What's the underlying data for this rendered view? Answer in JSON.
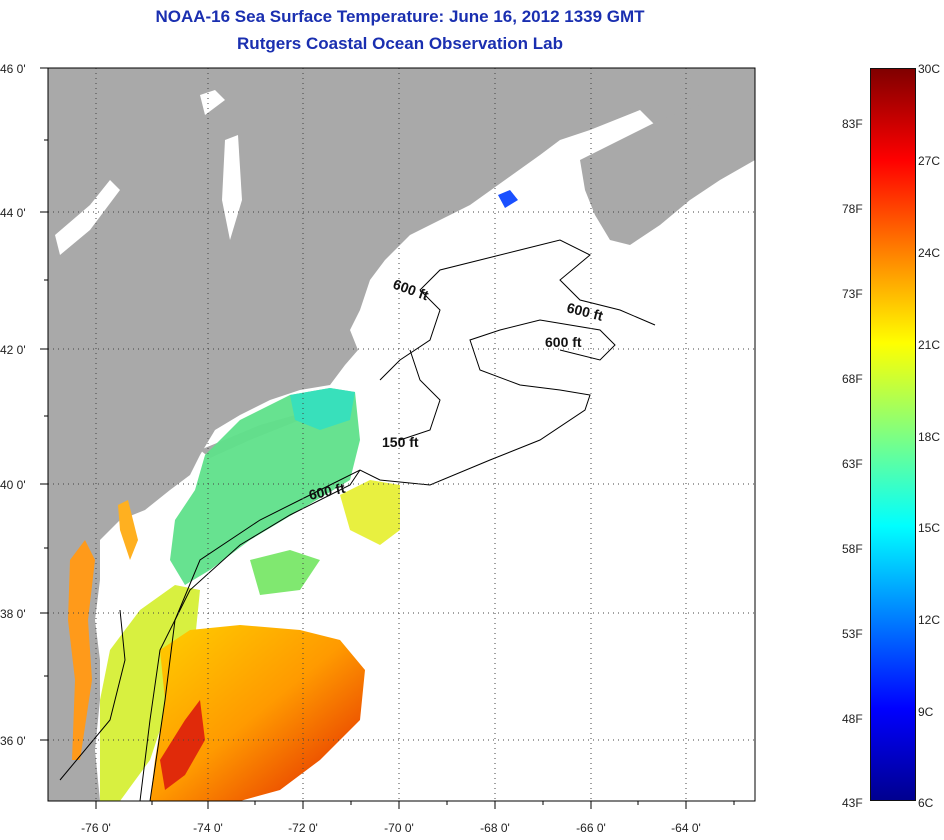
{
  "title": {
    "line1": "NOAA-16 Sea Surface Temperature:  June 16, 2012 1339 GMT",
    "line2": "Rutgers Coastal Ocean Observation Lab"
  },
  "map": {
    "lat_labels": [
      "46 0'",
      "44 0'",
      "42 0'",
      "40 0'",
      "38 0'",
      "36 0'"
    ],
    "lon_labels": [
      "-76 0'",
      "-74 0'",
      "-72 0'",
      "-70 0'",
      "-68 0'",
      "-66 0'",
      "-64 0'"
    ],
    "contour_labels": [
      "600 ft",
      "600 ft",
      "600 ft",
      "150 ft",
      "600 ft"
    ],
    "colors": {
      "land": "#a9a9a9",
      "cloud_or_nodata": "#ffffff"
    }
  },
  "colorbar": {
    "fahrenheit_labels": [
      "83F",
      "78F",
      "73F",
      "68F",
      "63F",
      "58F",
      "53F",
      "48F",
      "43F"
    ],
    "celsius_labels": [
      "30C",
      "27C",
      "24C",
      "21C",
      "18C",
      "15C",
      "12C",
      "9C",
      "6C"
    ],
    "colors": [
      "#00008f",
      "#0000ff",
      "#0080ff",
      "#00ffff",
      "#80ff80",
      "#ffff00",
      "#ff8000",
      "#ff0000",
      "#800000"
    ]
  }
}
